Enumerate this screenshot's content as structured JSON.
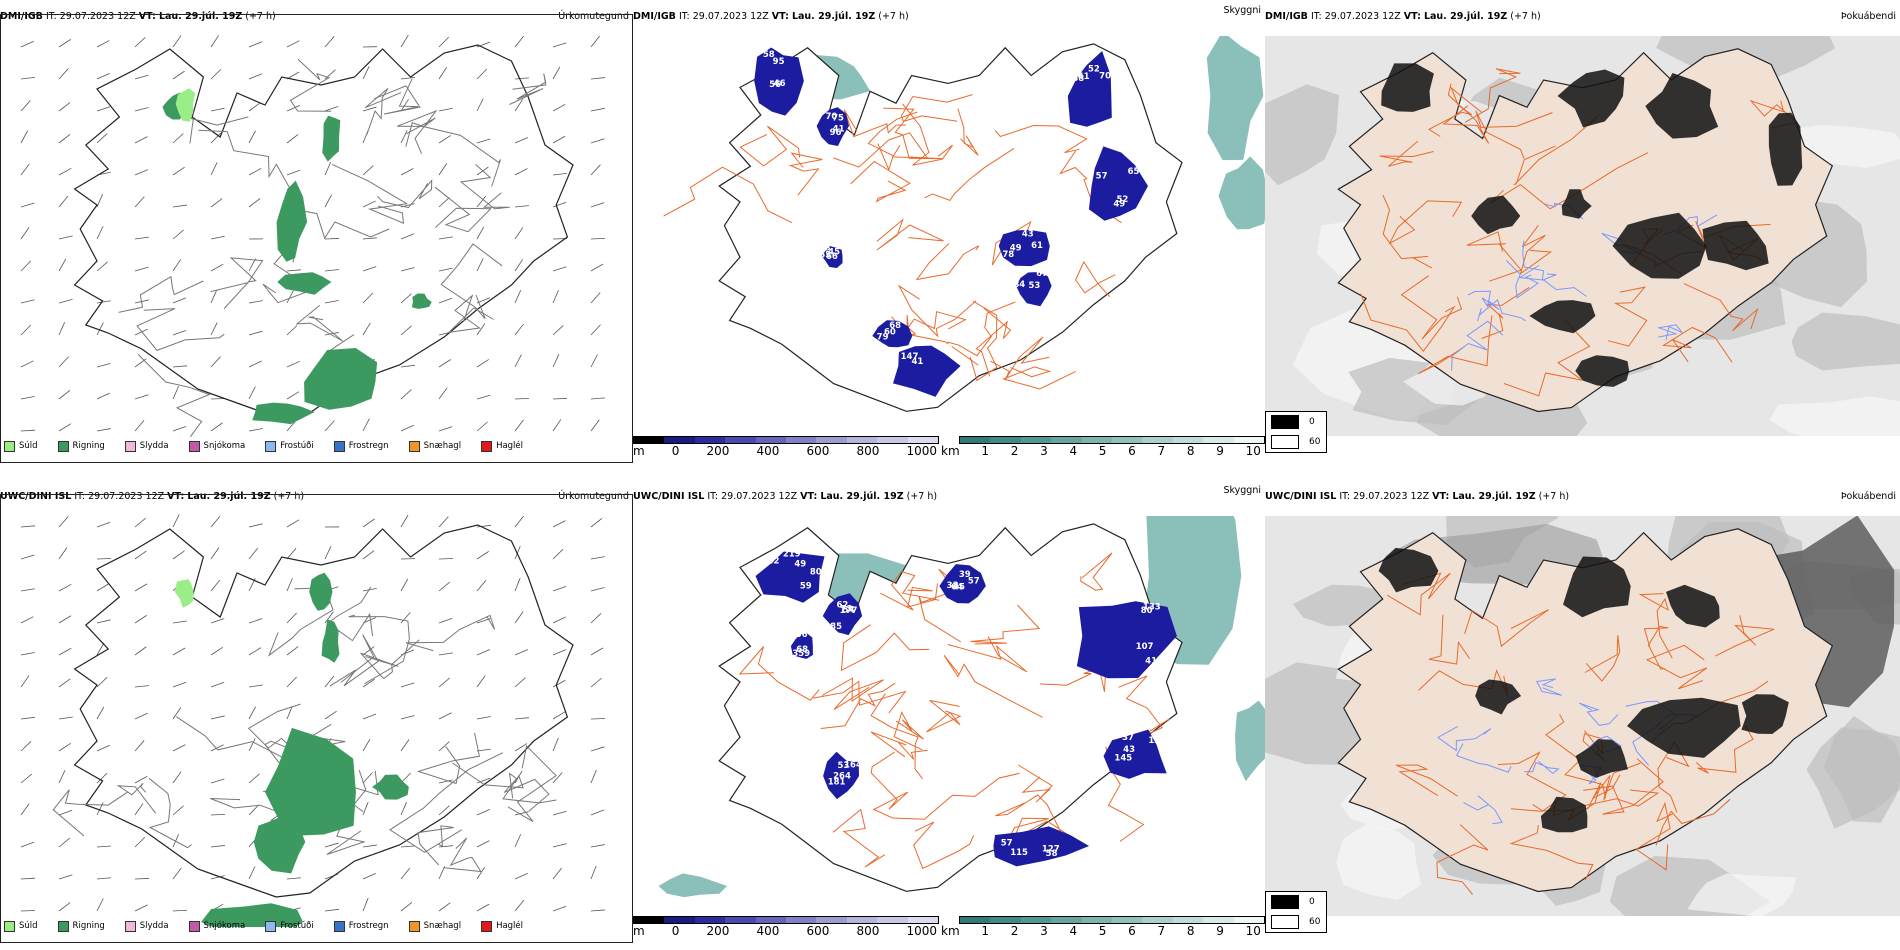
{
  "rows": [
    {
      "model": "DMI/IGB",
      "it_label": "IT:",
      "it": "29.07.2023 12Z",
      "vt_label": "VT:",
      "vt": "Lau. 29.júl. 19Z",
      "offset": "(+7 h)",
      "precip": {
        "title": "Úrkomutegund",
        "legend": [
          {
            "label": "Súld",
            "color": "#99ee88"
          },
          {
            "label": "Rigning",
            "color": "#3c9960"
          },
          {
            "label": "Slydda",
            "color": "#f2b7d9"
          },
          {
            "label": "Snjókoma",
            "color": "#c05aa8"
          },
          {
            "label": "Frostúði",
            "color": "#8fb8f0"
          },
          {
            "label": "Frostregn",
            "color": "#3573c8"
          },
          {
            "label": "Snæhagl",
            "color": "#f0962a"
          },
          {
            "label": "Haglél",
            "color": "#e01919"
          }
        ]
      },
      "cloud": {
        "title": "Skyggni",
        "labels": [
          "58",
          "41",
          "41",
          "52",
          "66",
          "78",
          "84",
          "59",
          "68",
          "56",
          "75",
          "58",
          "57",
          "55",
          "61",
          "67",
          "147",
          "60",
          "95",
          "96",
          "70",
          "49",
          "45",
          "43",
          "53",
          "41",
          "79",
          "46",
          "70",
          "52",
          "65",
          "78",
          "49"
        ],
        "bar_m_unit": "m",
        "bar_m_ticks": [
          "0",
          "200",
          "400",
          "600",
          "800",
          "1000"
        ],
        "bar_km_unit": "km",
        "bar_km_ticks": [
          "1",
          "2",
          "3",
          "4",
          "5",
          "6",
          "7",
          "8",
          "9",
          "10"
        ]
      },
      "fog": {
        "title": "Þokuábendi",
        "legend": [
          {
            "label": "0",
            "color": "#000000"
          },
          {
            "label": "60",
            "color": "#ffffff"
          }
        ]
      }
    },
    {
      "model": "UWC/DINI ISL",
      "it_label": "IT:",
      "it": "29.07.2023 12Z",
      "vt_label": "VT:",
      "vt": "Lau. 29.júl. 19Z",
      "offset": "(+7 h)",
      "precip": {
        "title": "Úrkomutegund",
        "legend": [
          {
            "label": "Súld",
            "color": "#99ee88"
          },
          {
            "label": "Rigning",
            "color": "#3c9960"
          },
          {
            "label": "Slydda",
            "color": "#f2b7d9"
          },
          {
            "label": "Snjókoma",
            "color": "#c05aa8"
          },
          {
            "label": "Frostúði",
            "color": "#8fb8f0"
          },
          {
            "label": "Frostregn",
            "color": "#3573c8"
          },
          {
            "label": "Snæhagl",
            "color": "#f0962a"
          },
          {
            "label": "Haglél",
            "color": "#e01919"
          }
        ]
      },
      "cloud": {
        "title": "Skyggni",
        "labels": [
          "49",
          "54",
          "39",
          "107",
          "43",
          "57",
          "53",
          "58",
          "68",
          "42",
          "177",
          "57",
          "41",
          "37",
          "127",
          "181",
          "26",
          "359",
          "219",
          "73",
          "33",
          "133",
          "145",
          "115",
          "164",
          "288",
          "106",
          "59",
          "62",
          "64",
          "80",
          "133",
          "58",
          "264",
          "89",
          "94",
          "80",
          "85",
          "45"
        ],
        "bar_m_unit": "m",
        "bar_m_ticks": [
          "0",
          "200",
          "400",
          "600",
          "800",
          "1000"
        ],
        "bar_km_unit": "km",
        "bar_km_ticks": [
          "1",
          "2",
          "3",
          "4",
          "5",
          "6",
          "7",
          "8",
          "9",
          "10"
        ]
      },
      "fog": {
        "title": "Þokuábendi",
        "legend": [
          {
            "label": "0",
            "color": "#000000"
          },
          {
            "label": "60",
            "color": "#ffffff"
          }
        ]
      }
    }
  ],
  "colors": {
    "land_fill": "#f1e1d4",
    "road": "#e86a2c",
    "river": "#7a98ff",
    "low_cloud": "#1c1ca0",
    "sea_fog": "#5aa59c",
    "m_bar": [
      "#000000",
      "#1a1a80",
      "#2c2ca0",
      "#4a4ab0",
      "#6565b8",
      "#8080c4",
      "#9c9cd0",
      "#b4b4dc",
      "#c8c8e6",
      "#dcdcf0"
    ],
    "km_bar": [
      "#2f7b76",
      "#3f8a84",
      "#519892",
      "#66a6a0",
      "#7cb4ae",
      "#92c2bc",
      "#a9d0cb",
      "#c0ddd9",
      "#d8ebe8",
      "#f0f8f7"
    ]
  }
}
